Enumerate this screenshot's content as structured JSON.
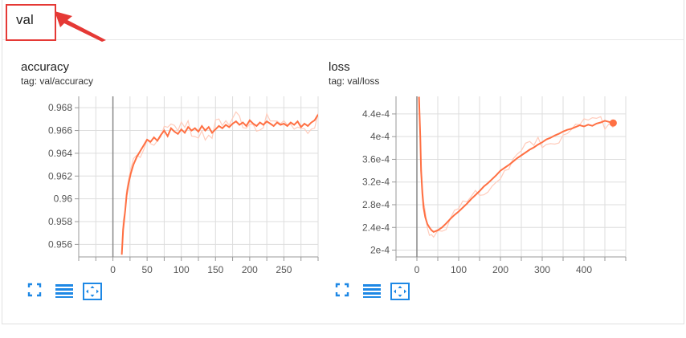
{
  "group": {
    "title": "val"
  },
  "colors": {
    "line": "#ff7043",
    "raw": "#ffccbc",
    "axis": "#999999",
    "grid": "#dddddd",
    "zero": "#888888",
    "icon": "#1e88e5",
    "annotation": "#e53935"
  },
  "icons": [
    "fullscreen-icon",
    "toggle-log-scale-icon",
    "fit-domain-icon"
  ],
  "cards": [
    {
      "title": "accuracy",
      "tag": "tag: val/accuracy",
      "chart_data": {
        "type": "line",
        "title": "accuracy",
        "xlabel": "",
        "ylabel": "",
        "xlim": [
          -50,
          300
        ],
        "ylim": [
          0.9549,
          0.969
        ],
        "x_ticks": [
          0,
          50,
          100,
          150,
          200,
          250
        ],
        "y_ticks": [
          0.956,
          0.958,
          0.96,
          0.962,
          0.964,
          0.966,
          0.968
        ],
        "y_tick_labels": [
          "0.956",
          "0.958",
          "0.96",
          "0.962",
          "0.964",
          "0.966",
          "0.968"
        ],
        "grid": true,
        "series": [
          {
            "x": [
              13,
              15,
              18,
              20,
              23,
              26,
              30,
              35,
              40,
              45,
              50,
              55,
              60,
              65,
              70,
              75,
              80,
              85,
              90,
              95,
              100,
              105,
              110,
              115,
              120,
              125,
              130,
              135,
              140,
              145,
              150,
              155,
              160,
              165,
              170,
              175,
              180,
              185,
              190,
              195,
              200,
              205,
              210,
              215,
              220,
              225,
              230,
              235,
              240,
              245,
              250,
              255,
              260,
              265,
              270,
              275,
              280,
              285,
              290,
              295,
              300
            ],
            "values": [
              0.9551,
              0.9573,
              0.959,
              0.9603,
              0.9614,
              0.9622,
              0.963,
              0.9637,
              0.9642,
              0.9647,
              0.9652,
              0.965,
              0.9654,
              0.9651,
              0.9656,
              0.966,
              0.9655,
              0.9662,
              0.9659,
              0.9657,
              0.9661,
              0.9658,
              0.9663,
              0.966,
              0.9662,
              0.9659,
              0.9664,
              0.966,
              0.9663,
              0.9658,
              0.9661,
              0.9664,
              0.9662,
              0.9665,
              0.9663,
              0.9666,
              0.9668,
              0.9665,
              0.9667,
              0.9664,
              0.9669,
              0.9666,
              0.9664,
              0.9667,
              0.9665,
              0.9668,
              0.9666,
              0.9664,
              0.9667,
              0.9665,
              0.9666,
              0.9664,
              0.9667,
              0.9665,
              0.9668,
              0.9663,
              0.9666,
              0.9664,
              0.9667,
              0.9669,
              0.9674
            ]
          }
        ]
      }
    },
    {
      "title": "loss",
      "tag": "tag: val/loss",
      "chart_data": {
        "type": "line",
        "title": "loss",
        "xlabel": "",
        "ylabel": "",
        "xlim": [
          -50,
          500
        ],
        "ylim": [
          0.000188,
          0.000471
        ],
        "x_ticks": [
          0,
          100,
          200,
          300,
          400
        ],
        "y_ticks": [
          0.0002,
          0.00024,
          0.00028,
          0.00032,
          0.00036,
          0.0004,
          0.00044
        ],
        "y_tick_labels": [
          "2e-4",
          "2.4e-4",
          "2.8e-4",
          "3.2e-4",
          "3.6e-4",
          "4e-4",
          "4.4e-4"
        ],
        "grid": true,
        "series": [
          {
            "x": [
              5,
              8,
              10,
              13,
              16,
              20,
              25,
              30,
              35,
              40,
              50,
              60,
              70,
              80,
              90,
              100,
              110,
              120,
              130,
              140,
              150,
              160,
              170,
              180,
              190,
              200,
              210,
              220,
              230,
              240,
              250,
              260,
              270,
              280,
              290,
              300,
              310,
              320,
              330,
              340,
              350,
              360,
              370,
              380,
              390,
              400,
              410,
              420,
              430,
              440,
              450,
              460,
              470
            ],
            "values": [
              0.00047,
              0.0004,
              0.00034,
              0.0003,
              0.000275,
              0.000258,
              0.000246,
              0.00024,
              0.000235,
              0.000232,
              0.000235,
              0.00024,
              0.000247,
              0.000255,
              0.000262,
              0.000268,
              0.000275,
              0.000282,
              0.00029,
              0.000297,
              0.000304,
              0.000312,
              0.000318,
              0.000325,
              0.000332,
              0.00034,
              0.000345,
              0.00035,
              0.000356,
              0.000362,
              0.000367,
              0.000372,
              0.000377,
              0.000381,
              0.000386,
              0.00039,
              0.000395,
              0.000398,
              0.000402,
              0.000405,
              0.000409,
              0.000412,
              0.000414,
              0.000417,
              0.00042,
              0.000418,
              0.000421,
              0.000419,
              0.000423,
              0.000425,
              0.000428,
              0.000426,
              0.000424
            ]
          }
        ]
      }
    }
  ]
}
